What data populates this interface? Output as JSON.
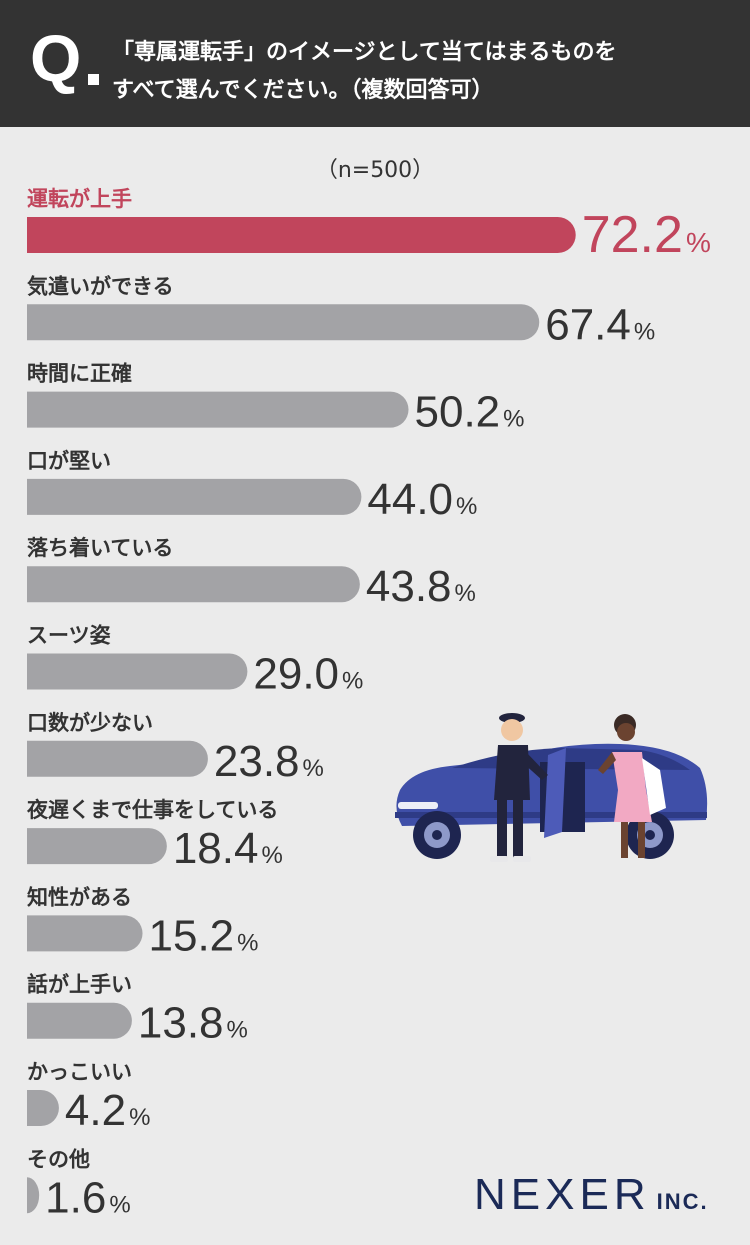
{
  "question": {
    "mark": "Q",
    "line1": "「専属運転手」のイメージとして当てはまるものを",
    "line2": "すべて選んでください。（複数回答可）"
  },
  "sample_size": "（n=500）",
  "logo": {
    "main": "NEXER",
    "sub": "INC."
  },
  "colors": {
    "highlight": "#c1455c",
    "bar": "#a3a3a6",
    "header": "#333333",
    "background": "#ebebeb",
    "logo": "#1b2a57"
  },
  "illustration": {
    "icon": "chauffeur-car-icon"
  },
  "chart_data": {
    "type": "bar",
    "orientation": "horizontal",
    "unit": "%",
    "highlight_index": 0,
    "categories": [
      "運転が上手",
      "気遣いができる",
      "時間に正確",
      "口が堅い",
      "落ち着いている",
      "スーツ姿",
      "口数が少ない",
      "夜遅くまで仕事をしている",
      "知性がある",
      "話が上手い",
      "かっこいい",
      "その他"
    ],
    "values": [
      72.2,
      67.4,
      50.2,
      44.0,
      43.8,
      29.0,
      23.8,
      18.4,
      15.2,
      13.8,
      4.2,
      1.6
    ],
    "value_labels": [
      "72.2",
      "67.4",
      "50.2",
      "44.0",
      "43.8",
      "29.0",
      "23.8",
      "18.4",
      "15.2",
      "13.8",
      "4.2",
      "1.6"
    ]
  }
}
